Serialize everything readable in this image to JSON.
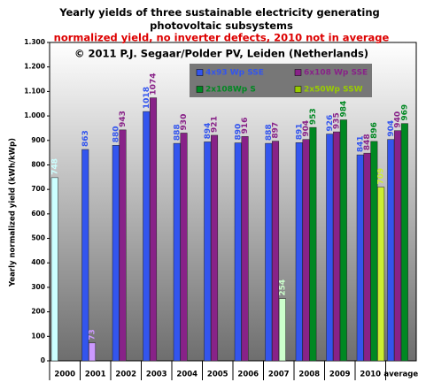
{
  "chart_data": {
    "type": "bar",
    "title": "Yearly yields of three sustainable electricity generating photovoltaic subsystems",
    "subtitle": "normalized yield, no inverter defects, 2010 not in average",
    "copyright": "© 2011 P.J. Segaar/Polder PV, Leiden (Netherlands)",
    "y_label": "Yearly normalized yield (kWh/kWp)",
    "categories": [
      "2000",
      "2001",
      "2002",
      "2003",
      "2004",
      "2005",
      "2006",
      "2007",
      "2008",
      "2009",
      "2010",
      "average"
    ],
    "series": [
      {
        "name": "4x93 Wp SSE",
        "color": "#3355ee",
        "colors": [
          "#ccffff",
          "#3355ee",
          "#3355ee",
          "#3355ee",
          "#3355ee",
          "#3355ee",
          "#3355ee",
          "#3355ee",
          "#3355ee",
          "#3355ee",
          "#3355ee",
          "#3355ee"
        ],
        "values": [
          748,
          863,
          880,
          1018,
          888,
          894,
          890,
          888,
          891,
          926,
          841,
          904
        ]
      },
      {
        "name": "6x108 Wp SSE",
        "color": "#882288",
        "colors": [
          "#882288",
          "#cc99ff",
          "#882288",
          "#882288",
          "#882288",
          "#882288",
          "#882288",
          "#882288",
          "#882288",
          "#882288",
          "#882288",
          "#882288"
        ],
        "values": [
          null,
          73,
          943,
          1074,
          930,
          921,
          916,
          897,
          904,
          935,
          848,
          940
        ]
      },
      {
        "name": "2x108Wp S",
        "color": "#008822",
        "colors": [
          "#008822",
          "#008822",
          "#008822",
          "#008822",
          "#008822",
          "#008822",
          "#008822",
          "#ccffcc",
          "#008822",
          "#008822",
          "#008822",
          "#008822"
        ],
        "values": [
          null,
          null,
          null,
          null,
          null,
          null,
          null,
          254,
          953,
          984,
          896,
          969
        ]
      },
      {
        "name": "2x50Wp SSW",
        "color": "#99cc00",
        "colors": [
          "#99cc00",
          "#99cc00",
          "#99cc00",
          "#99cc00",
          "#99cc00",
          "#99cc00",
          "#99cc00",
          "#99cc00",
          "#99cc00",
          "#99cc00",
          "#ccee33",
          "#99cc00"
        ],
        "values": [
          null,
          null,
          null,
          null,
          null,
          null,
          null,
          null,
          null,
          null,
          709,
          null
        ]
      }
    ],
    "ylim": [
      0,
      1300
    ],
    "yticks": [
      0,
      100,
      200,
      300,
      400,
      500,
      600,
      700,
      800,
      900,
      {
        "value": 1000,
        "label": "1.000"
      },
      {
        "value": 1100,
        "label": "1.100"
      },
      {
        "value": 1200,
        "label": "1.200"
      },
      {
        "value": 1300,
        "label": "1.300"
      }
    ],
    "grid": false
  }
}
